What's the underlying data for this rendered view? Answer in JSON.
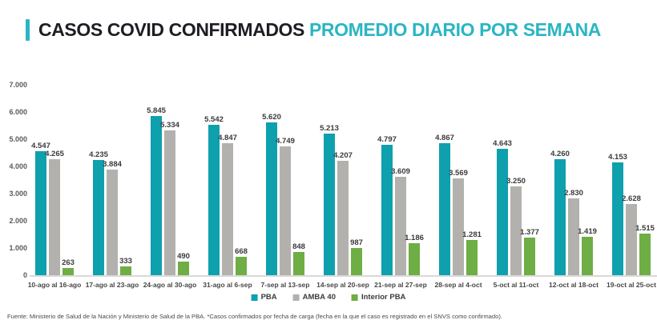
{
  "header": {
    "title_main": "CASOS COVID CONFIRMADOS",
    "title_accent": "PROMEDIO DIARIO POR SEMANA",
    "accent_color": "#2bb5c4"
  },
  "chart_data": {
    "type": "bar",
    "title": "CASOS COVID CONFIRMADOS PROMEDIO DIARIO POR SEMANA",
    "categories": [
      "10-ago al 16-ago",
      "17-ago al 23-ago",
      "24-ago al 30-ago",
      "31-ago al 6-sep",
      "7-sep al 13-sep",
      "14-sep al 20-sep",
      "21-sep al 27-sep",
      "28-sep al 4-oct",
      "5-oct al 11-oct",
      "12-oct al 18-oct",
      "19-oct al 25-oct"
    ],
    "series": [
      {
        "name": "PBA",
        "color": "#0fa0ad",
        "values": [
          4547,
          4235,
          5845,
          5542,
          5620,
          5213,
          4797,
          4867,
          4643,
          4260,
          4153
        ],
        "labels": [
          "4.547",
          "4.235",
          "5.845",
          "5.542",
          "5.620",
          "5.213",
          "4.797",
          "4.867",
          "4.643",
          "4.260",
          "4.153"
        ]
      },
      {
        "name": "AMBA 40",
        "color": "#b3b1ae",
        "values": [
          4265,
          3884,
          5334,
          4847,
          4749,
          4207,
          3609,
          3569,
          3250,
          2830,
          2628
        ],
        "labels": [
          "4.265",
          "3.884",
          "5.334",
          "4.847",
          "4.749",
          "4.207",
          "3.609",
          "3.569",
          "3.250",
          "2.830",
          "2.628"
        ]
      },
      {
        "name": "Interior PBA",
        "color": "#6fad45",
        "values": [
          263,
          333,
          490,
          668,
          848,
          987,
          1186,
          1281,
          1377,
          1419,
          1515
        ],
        "labels": [
          "263",
          "333",
          "490",
          "668",
          "848",
          "987",
          "1.186",
          "1.281",
          "1.377",
          "1.419",
          "1.515"
        ]
      }
    ],
    "ylim": [
      0,
      7000
    ],
    "ytick_labels": [
      "7.000",
      "6.000",
      "5.000",
      "4.000",
      "3.000",
      "2.000",
      "1.000",
      "0"
    ],
    "grid": false,
    "legend_position": "bottom"
  },
  "footer": {
    "source": "Fuente: Ministerio de Salud de la Nación y Ministerio de Salud de la PBA. *Casos confirmados por fecha de carga (fecha en la que el caso es registrado en el SNVS como confirmado)."
  }
}
